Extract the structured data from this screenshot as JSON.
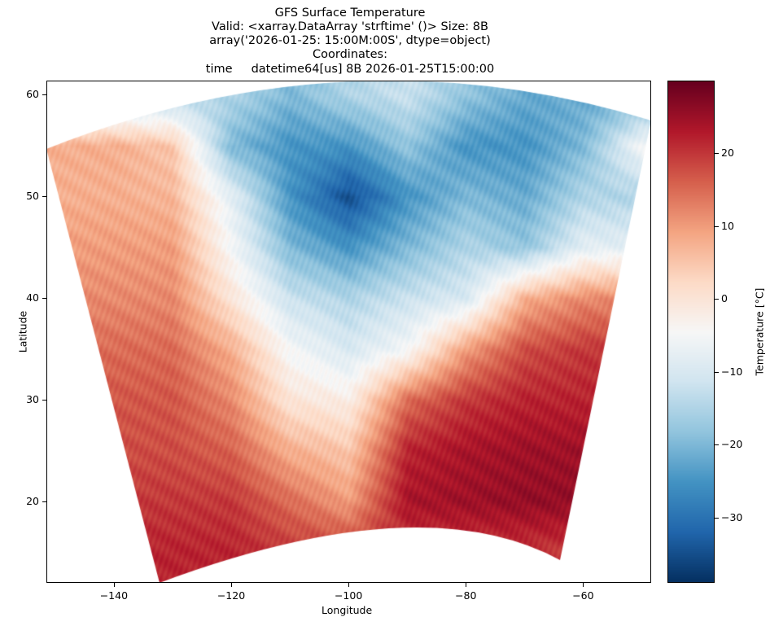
{
  "chart_data": {
    "type": "heatmap",
    "title": [
      "GFS Surface Temperature",
      "Valid: <xarray.DataArray 'strftime' ()> Size: 8B",
      "array('2026-01-25: 15:00M:00S', dtype=object)",
      "Coordinates:",
      "time     datetime64[us] 8B 2026-01-25T15:00:00"
    ],
    "xlabel": "Longitude",
    "ylabel": "Latitude",
    "xlim": [
      -151.5,
      -48.4
    ],
    "ylim": [
      12.0,
      61.4
    ],
    "xticks": [
      "−140",
      "−120",
      "−100",
      "−80",
      "−60"
    ],
    "xtick_values": [
      -140,
      -120,
      -100,
      -80,
      -60
    ],
    "yticks": [
      "20",
      "30",
      "40",
      "50",
      "60"
    ],
    "ytick_values": [
      20,
      30,
      40,
      50,
      60
    ],
    "grid": false,
    "colormap": "RdBu_r",
    "colorbar": {
      "label": "Temperature [°C]",
      "range": [
        -39,
        30
      ],
      "ticks": [
        "−30",
        "−20",
        "−10",
        "0",
        "10",
        "20"
      ],
      "tick_values": [
        -30,
        -20,
        -10,
        0,
        10,
        20
      ],
      "placement": "right"
    },
    "grid_lon": [
      -150,
      -140,
      -130,
      -120,
      -110,
      -100,
      -90,
      -80,
      -70,
      -60,
      -50
    ],
    "grid_lat": [
      60,
      55,
      50,
      45,
      40,
      35,
      30,
      25,
      20,
      15
    ],
    "values": [
      [
        null,
        null,
        null,
        -15,
        -20,
        -15,
        -12,
        -18,
        -22,
        null,
        null
      ],
      [
        8,
        8,
        5,
        -20,
        -25,
        -25,
        -18,
        -25,
        -25,
        -20,
        -5
      ],
      [
        null,
        8,
        7,
        -8,
        -25,
        -35,
        -25,
        -20,
        -22,
        -15,
        null
      ],
      [
        null,
        10,
        10,
        -5,
        -20,
        -25,
        -20,
        -15,
        -18,
        -8,
        null
      ],
      [
        null,
        12,
        12,
        0,
        -12,
        -15,
        -12,
        -10,
        8,
        12,
        null
      ],
      [
        null,
        15,
        15,
        8,
        -5,
        -10,
        -5,
        10,
        18,
        20,
        null
      ],
      [
        null,
        17,
        17,
        12,
        0,
        -2,
        15,
        20,
        22,
        22,
        null
      ],
      [
        null,
        null,
        18,
        16,
        8,
        5,
        22,
        24,
        25,
        25,
        null
      ],
      [
        null,
        null,
        20,
        20,
        15,
        10,
        24,
        25,
        26,
        null,
        null
      ],
      [
        null,
        null,
        22,
        22,
        20,
        null,
        null,
        null,
        null,
        null,
        null
      ]
    ]
  }
}
